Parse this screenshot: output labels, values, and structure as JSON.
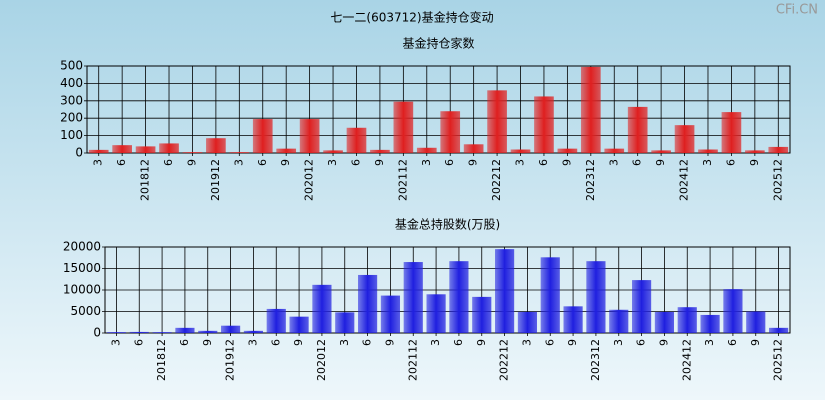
{
  "title": "七一二(603712)基金持仓变动",
  "watermark": "CFi.CN",
  "chart_data": [
    {
      "type": "bar",
      "title": "基金持仓家数",
      "color": "#e02020",
      "categories": [
        "3",
        "6",
        "201812",
        "6",
        "9",
        "201912",
        "3",
        "6",
        "9",
        "202012",
        "3",
        "6",
        "9",
        "202112",
        "3",
        "6",
        "9",
        "202212",
        "3",
        "6",
        "9",
        "202312",
        "3",
        "6",
        "9",
        "202412",
        "3",
        "6",
        "9",
        "202512"
      ],
      "values": [
        18,
        45,
        38,
        55,
        5,
        85,
        5,
        195,
        25,
        195,
        15,
        145,
        18,
        295,
        30,
        240,
        50,
        360,
        20,
        325,
        25,
        495,
        25,
        265,
        15,
        160,
        20,
        235,
        15,
        35
      ],
      "ylim": [
        0,
        500
      ],
      "yticks": [
        0,
        100,
        200,
        300,
        400,
        500
      ],
      "grid": true
    },
    {
      "type": "bar",
      "title": "基金总持股数(万股)",
      "color": "#2020e0",
      "categories": [
        "3",
        "6",
        "201812",
        "6",
        "9",
        "201912",
        "3",
        "6",
        "9",
        "202012",
        "3",
        "6",
        "9",
        "202112",
        "3",
        "6",
        "9",
        "202212",
        "3",
        "6",
        "9",
        "202312",
        "3",
        "6",
        "9",
        "202412",
        "3",
        "6",
        "9",
        "202512"
      ],
      "values": [
        200,
        250,
        200,
        1200,
        500,
        1700,
        500,
        5600,
        3800,
        11200,
        4800,
        13500,
        8700,
        16500,
        9000,
        16700,
        8400,
        19500,
        4900,
        17600,
        6200,
        16700,
        5400,
        12300,
        4900,
        6000,
        4200,
        10200,
        5000,
        1200
      ],
      "ylim": [
        0,
        20000
      ],
      "yticks": [
        0,
        5000,
        10000,
        15000,
        20000
      ],
      "grid": true
    }
  ]
}
